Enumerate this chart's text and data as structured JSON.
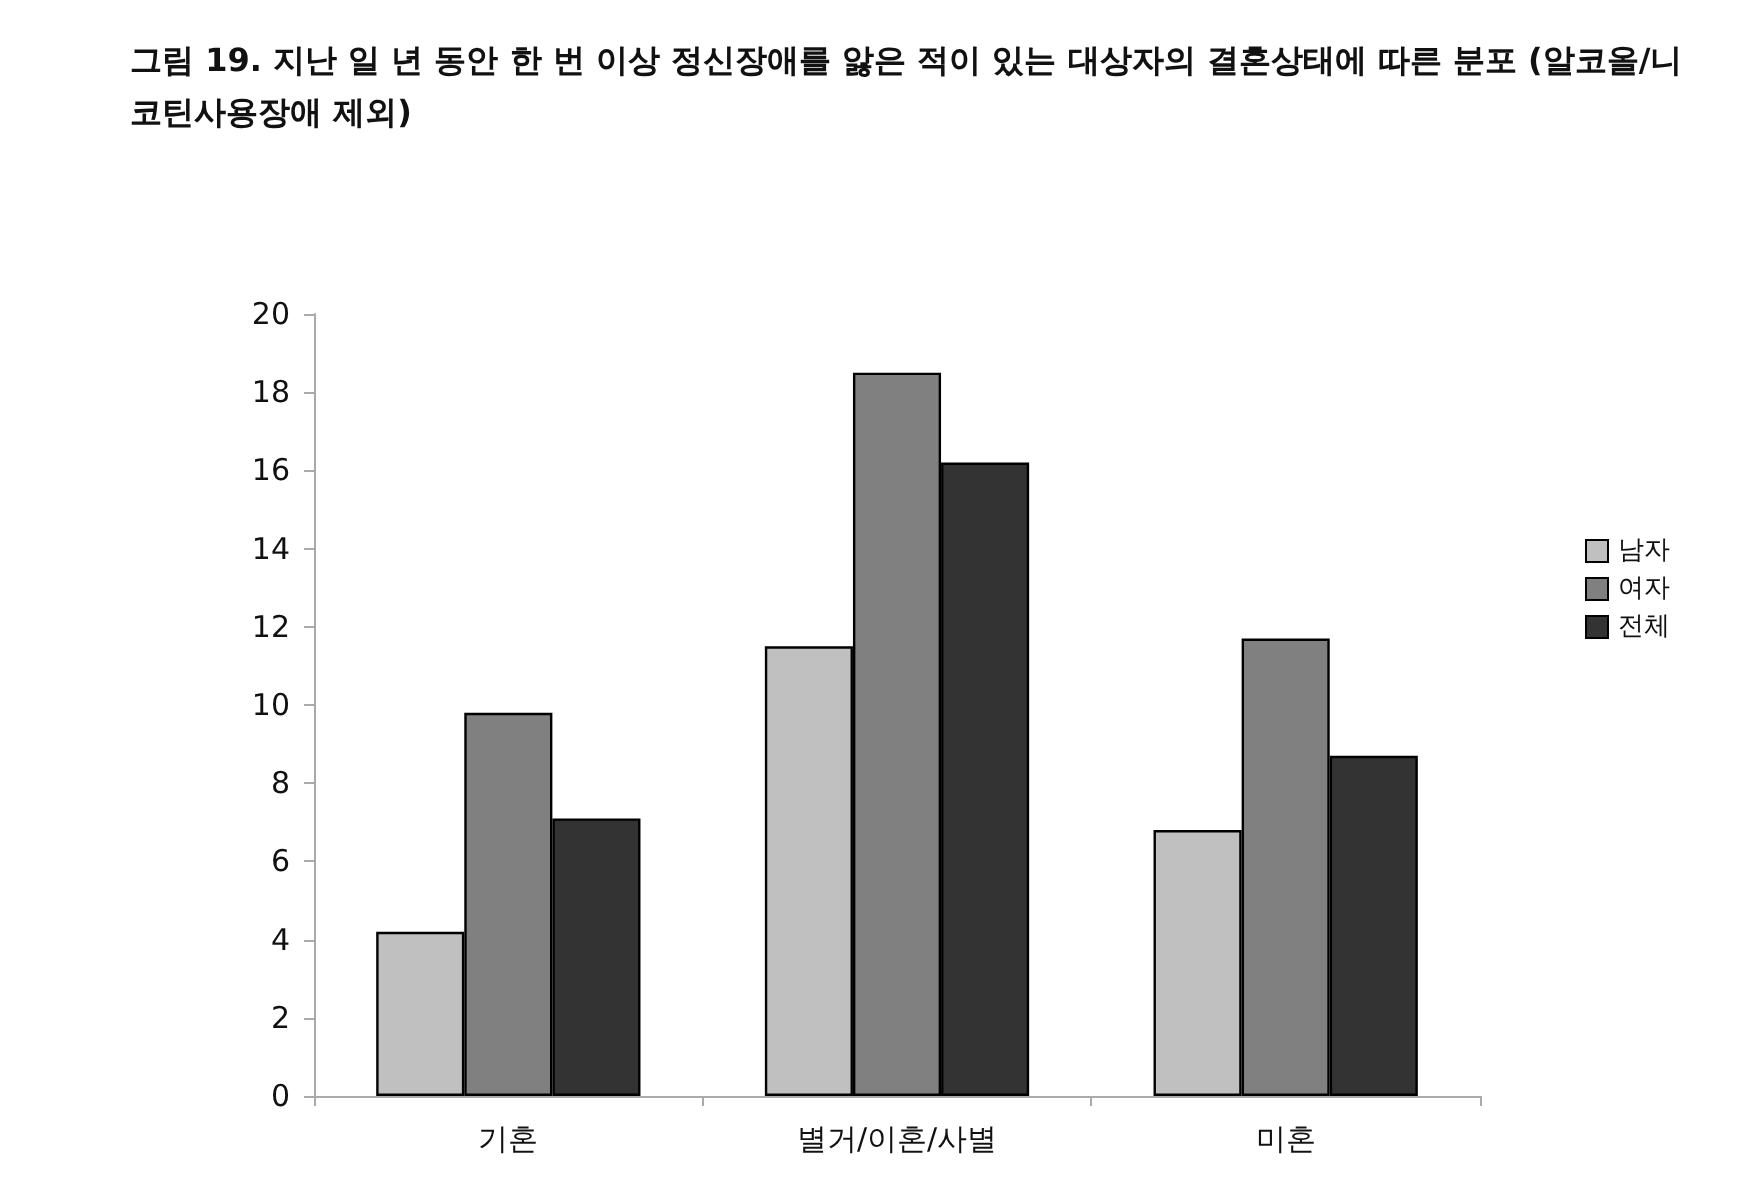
{
  "chart_data": {
    "type": "bar",
    "title": "그림 19. 지난 일 년 동안 한 번 이상 정신장애를 앓은 적이 있는 대상자의 결혼상태에 따른 분포 (알코올/니코틴사용장애 제외)",
    "categories": [
      "기혼",
      "별거/이혼/사별",
      "미혼"
    ],
    "series": [
      {
        "name": "남자",
        "color": "#c0c0c0",
        "values": [
          4.2,
          11.5,
          6.8
        ]
      },
      {
        "name": "여자",
        "color": "#808080",
        "values": [
          9.8,
          18.5,
          11.7
        ]
      },
      {
        "name": "전체",
        "color": "#333333",
        "values": [
          7.1,
          16.2,
          8.7
        ]
      }
    ],
    "ylim": [
      0,
      20
    ],
    "yticks": [
      0,
      2,
      4,
      6,
      8,
      10,
      12,
      14,
      16,
      18,
      20
    ],
    "grid": false,
    "legend": "right"
  }
}
